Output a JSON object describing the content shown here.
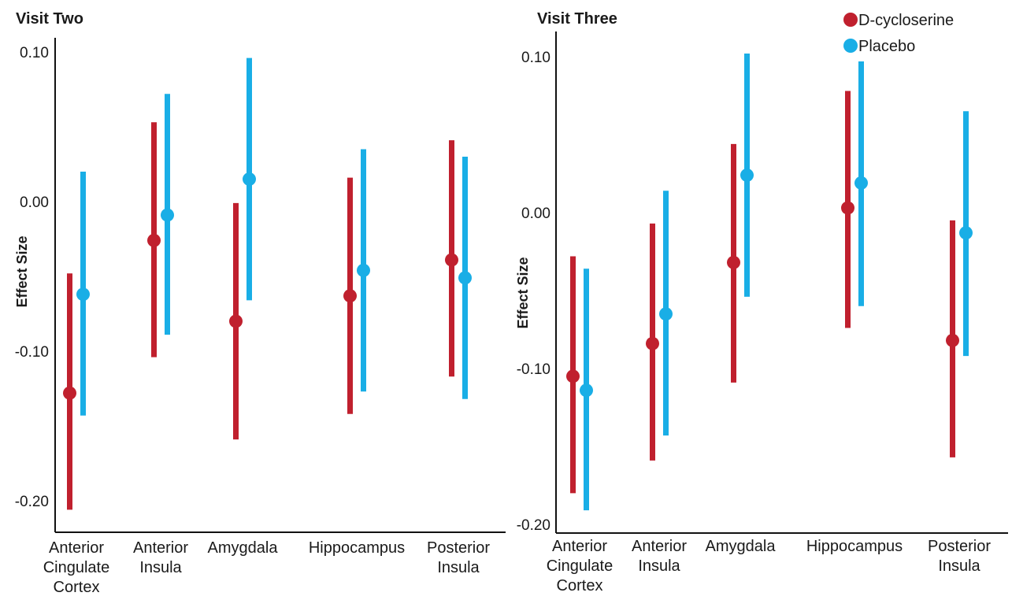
{
  "chart_data": [
    {
      "type": "scatter",
      "title": "Visit Two",
      "ylabel": "Effect Size",
      "xlabel": "",
      "ylim": [
        -0.22,
        0.105
      ],
      "yticks": [
        0.1,
        0.0,
        -0.1,
        -0.2
      ],
      "ytick_labels": [
        "0.10",
        "0.00",
        "-0.10",
        "-0.20"
      ],
      "categories": [
        [
          "Anterior",
          "Cingulate",
          "Cortex"
        ],
        [
          "Anterior",
          "Insula"
        ],
        [
          "Amygdala"
        ],
        [
          "Hippocampus"
        ],
        [
          "Posterior",
          "Insula"
        ]
      ],
      "series": [
        {
          "name": "D-cycloserine",
          "color": "#c0202e",
          "values": [
            -0.128,
            -0.026,
            -0.08,
            -0.063,
            -0.039
          ],
          "ci_low": [
            -0.206,
            -0.104,
            -0.159,
            -0.142,
            -0.117
          ],
          "ci_high": [
            -0.048,
            0.053,
            -0.001,
            0.016,
            0.041
          ]
        },
        {
          "name": "Placebo",
          "color": "#19aee6",
          "values": [
            -0.062,
            -0.009,
            0.015,
            -0.046,
            -0.051
          ],
          "ci_low": [
            -0.143,
            -0.089,
            -0.066,
            -0.127,
            -0.132
          ],
          "ci_high": [
            0.02,
            0.072,
            0.096,
            0.035,
            0.03
          ]
        }
      ],
      "grid": false
    },
    {
      "type": "scatter",
      "title": "Visit Three",
      "ylabel": "Effect Size",
      "xlabel": "",
      "ylim": [
        -0.205,
        0.115
      ],
      "yticks": [
        0.1,
        0.0,
        -0.1,
        -0.2
      ],
      "ytick_labels": [
        "0.10",
        "0.00",
        "-0.10",
        "-0.20"
      ],
      "categories": [
        [
          "Anterior",
          "Cingulate",
          "Cortex"
        ],
        [
          "Anterior",
          "Insula"
        ],
        [
          "Amygdala"
        ],
        [
          "Hippocampus"
        ],
        [
          "Posterior",
          "Insula"
        ]
      ],
      "series": [
        {
          "name": "D-cycloserine",
          "color": "#c0202e",
          "values": [
            -0.105,
            -0.084,
            -0.032,
            0.003,
            -0.082
          ],
          "ci_low": [
            -0.18,
            -0.159,
            -0.109,
            -0.074,
            -0.157
          ],
          "ci_high": [
            -0.028,
            -0.007,
            0.044,
            0.078,
            -0.005
          ]
        },
        {
          "name": "Placebo",
          "color": "#19aee6",
          "values": [
            -0.114,
            -0.065,
            0.024,
            0.019,
            -0.013
          ],
          "ci_low": [
            -0.191,
            -0.143,
            -0.054,
            -0.06,
            -0.092
          ],
          "ci_high": [
            -0.036,
            0.014,
            0.102,
            0.097,
            0.065
          ]
        }
      ],
      "legend": {
        "placement": "top-right",
        "entries": [
          "D-cycloserine",
          "Placebo"
        ]
      },
      "grid": false
    }
  ]
}
